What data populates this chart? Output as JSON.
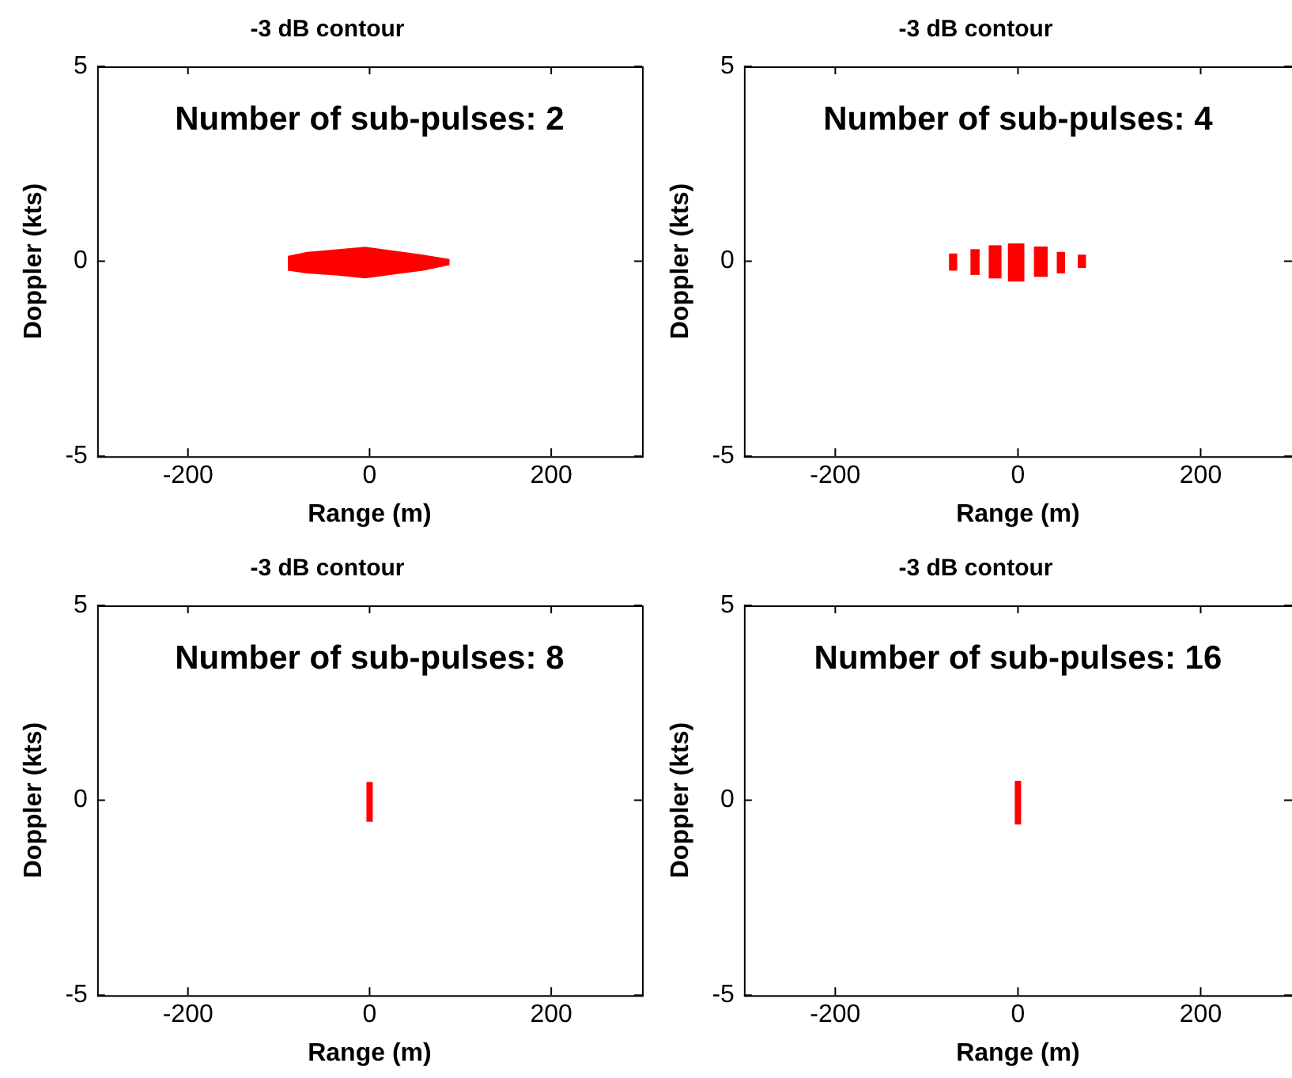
{
  "chart_data": [
    {
      "type": "line",
      "title": "-3 dB contour",
      "xlabel": "Range (m)",
      "ylabel": "Doppler (kts)",
      "annotations": [
        "Number of sub-pulses: 2"
      ],
      "xlim": [
        -300,
        300
      ],
      "ylim": [
        -5,
        5
      ],
      "xticks": [
        -200,
        0,
        200
      ],
      "yticks": [
        -5,
        0,
        5
      ],
      "grid": false,
      "legend": false,
      "marker": "none",
      "line_style": "solid",
      "series": [
        {
          "color": "#ff0000",
          "x": [
            -90,
            -69,
            -34,
            -5,
            24,
            59,
            88
          ],
          "values": [
            null,
            null,
            null,
            null,
            null,
            null,
            null
          ],
          "upper": [
            0.14,
            0.24,
            0.31,
            0.37,
            0.28,
            0.17,
            0.06
          ],
          "lower": [
            -0.24,
            -0.31,
            -0.37,
            -0.44,
            -0.35,
            -0.24,
            -0.1
          ]
        }
      ]
    },
    {
      "type": "line",
      "title": "-3 dB contour",
      "xlabel": "Range (m)",
      "ylabel": "Doppler (kts)",
      "annotations": [
        "Number of sub-pulses: 4"
      ],
      "xlim": [
        -300,
        300
      ],
      "ylim": [
        -5,
        5
      ],
      "xticks": [
        -200,
        0,
        200
      ],
      "yticks": [
        -5,
        0,
        5
      ],
      "grid": false,
      "legend": false,
      "marker": "none",
      "line_style": "solid",
      "series": [
        {
          "color": "#ff0000",
          "x": [
            -75.5,
            -66.5,
            -59,
            -52,
            -42,
            -35.5,
            -32,
            -18,
            -14.5,
            -11,
            7,
            12.5,
            17.5,
            32.5,
            37.5,
            42.5,
            51.5,
            58.5,
            65.5,
            74.5
          ],
          "values": [
            null,
            null,
            null,
            null,
            null,
            null,
            null,
            null,
            null,
            null,
            null,
            null,
            null,
            null,
            null,
            null,
            null,
            null,
            null,
            null
          ],
          "upper": [
            0.2,
            0.2,
            null,
            0.31,
            0.31,
            null,
            0.41,
            0.41,
            null,
            0.46,
            0.46,
            null,
            0.38,
            0.38,
            null,
            0.24,
            0.24,
            null,
            0.17,
            0.17
          ],
          "lower": [
            -0.24,
            -0.24,
            null,
            -0.35,
            -0.35,
            null,
            -0.44,
            -0.44,
            null,
            -0.52,
            -0.52,
            null,
            -0.4,
            -0.4,
            null,
            -0.31,
            -0.31,
            null,
            -0.17,
            -0.17
          ]
        }
      ]
    },
    {
      "type": "line",
      "title": "-3 dB contour",
      "xlabel": "Range (m)",
      "ylabel": "Doppler (kts)",
      "annotations": [
        "Number of sub-pulses: 8"
      ],
      "xlim": [
        -300,
        300
      ],
      "ylim": [
        -5,
        5
      ],
      "xticks": [
        -200,
        0,
        200
      ],
      "yticks": [
        -5,
        0,
        5
      ],
      "grid": false,
      "legend": false,
      "marker": "none",
      "line_style": "solid",
      "series": [
        {
          "color": "#ff0000",
          "x": [
            0,
            0
          ],
          "values": [
            -0.55,
            0.47
          ]
        }
      ]
    },
    {
      "type": "line",
      "title": "-3 dB contour",
      "xlabel": "Range (m)",
      "ylabel": "Doppler (kts)",
      "annotations": [
        "Number of sub-pulses: 16"
      ],
      "xlim": [
        -300,
        300
      ],
      "ylim": [
        -5,
        5
      ],
      "xticks": [
        -200,
        0,
        200
      ],
      "yticks": [
        -5,
        0,
        5
      ],
      "grid": false,
      "legend": false,
      "marker": "none",
      "line_style": "solid",
      "series": [
        {
          "color": "#ff0000",
          "x": [
            0,
            0
          ],
          "values": [
            -0.62,
            0.5
          ]
        }
      ]
    }
  ]
}
